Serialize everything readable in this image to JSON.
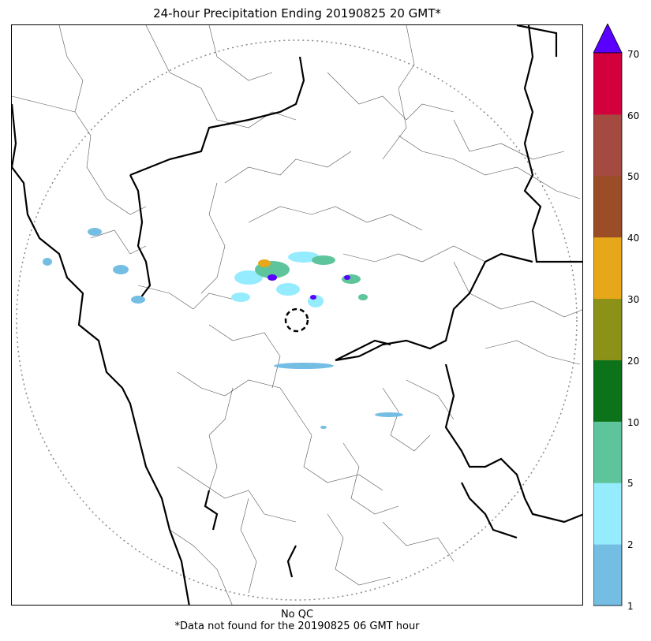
{
  "title": "24-hour Precipitation Ending 20190825 20 GMT*",
  "footer": {
    "qc": "No QC",
    "note": "*Data not found for the 20190825 06 GMT hour"
  },
  "colorbar": {
    "ticks": [
      "1",
      "2",
      "5",
      "10",
      "20",
      "30",
      "40",
      "50",
      "60",
      "70"
    ],
    "colors": [
      "#74bde3",
      "#96ecff",
      "#5ec49b",
      "#0d731a",
      "#8c9118",
      "#e6a71a",
      "#9a4d27",
      "#a44a40",
      "#d4003e"
    ],
    "extend_color": "#5a00ff"
  }
}
